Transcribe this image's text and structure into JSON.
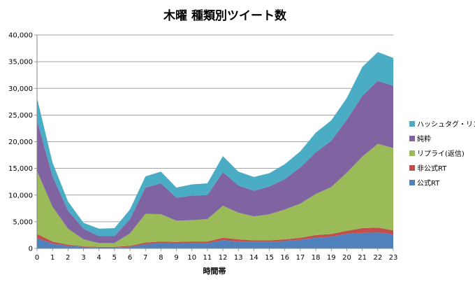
{
  "chart_data": {
    "type": "area",
    "stacked": true,
    "title": "木曜 種類別ツイート数",
    "xlabel": "時間帯",
    "ylabel": "",
    "ylim": [
      0,
      40000
    ],
    "y_ticks": [
      "0",
      "5,000",
      "10,000",
      "15,000",
      "20,000",
      "25,000",
      "30,000",
      "35,000",
      "40,000"
    ],
    "grid": true,
    "legend_position": "right",
    "x": [
      0,
      1,
      2,
      3,
      4,
      5,
      6,
      7,
      8,
      9,
      10,
      11,
      12,
      13,
      14,
      15,
      16,
      17,
      18,
      19,
      20,
      21,
      22,
      23
    ],
    "series": [
      {
        "name": "公式RT",
        "color": "#4f81bd",
        "values": [
          1900,
          900,
          500,
          300,
          200,
          200,
          300,
          800,
          1000,
          900,
          1000,
          1000,
          1500,
          1300,
          1200,
          1200,
          1400,
          1600,
          2000,
          2200,
          2700,
          2900,
          3000,
          2600
        ]
      },
      {
        "name": "非公式RT",
        "color": "#c0504d",
        "values": [
          800,
          400,
          200,
          100,
          100,
          100,
          200,
          300,
          300,
          300,
          300,
          300,
          500,
          400,
          300,
          300,
          300,
          400,
          500,
          500,
          600,
          900,
          900,
          800
        ]
      },
      {
        "name": "リプライ(返信)",
        "color": "#9bbb59",
        "values": [
          11800,
          6500,
          3000,
          1300,
          700,
          700,
          2300,
          5400,
          5100,
          4000,
          4000,
          4200,
          6000,
          5000,
          4500,
          4900,
          5600,
          6400,
          7700,
          8800,
          10900,
          13400,
          15700,
          15400
        ]
      },
      {
        "name": "純粋",
        "color": "#8064a2",
        "values": [
          9500,
          5700,
          3400,
          2000,
          1300,
          1300,
          2700,
          4900,
          5800,
          4300,
          4600,
          4500,
          6300,
          5100,
          4800,
          5200,
          5700,
          6800,
          7800,
          8700,
          9900,
          11400,
          11800,
          11700
        ]
      },
      {
        "name": "ハッシュタグ・リンク",
        "color": "#4bacc6",
        "values": [
          4200,
          2600,
          1700,
          1100,
          1400,
          1500,
          1800,
          2100,
          2200,
          1900,
          2100,
          2200,
          3000,
          2600,
          2600,
          2500,
          2800,
          3000,
          3700,
          3800,
          4100,
          5400,
          5400,
          5200
        ]
      }
    ]
  }
}
